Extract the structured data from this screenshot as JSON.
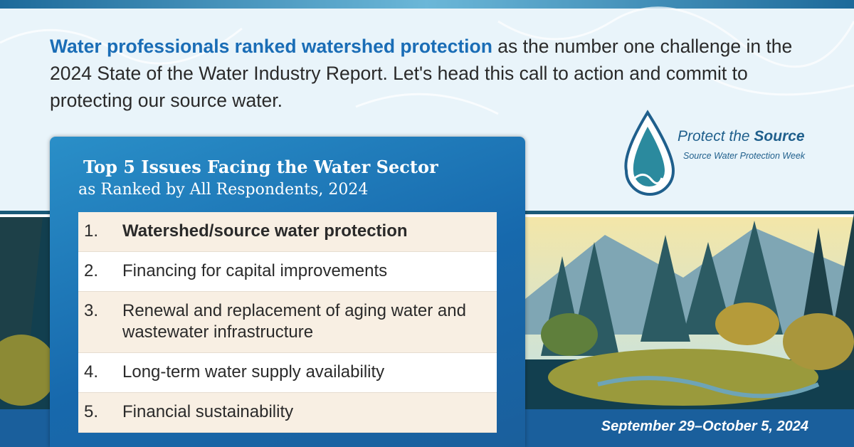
{
  "intro": {
    "highlight": "Water professionals ranked watershed protection",
    "text": "as the number one challenge in the 2024 State of the Water Industry Report. Let's head this call to action and commit to protecting our source water."
  },
  "logo": {
    "title_prefix": "Protect the",
    "title_emphasis": "Source",
    "subtitle": "Source Water Protection Week"
  },
  "card": {
    "title": "Top 5 Issues Facing the Water Sector",
    "subtitle": "as Ranked by All Respondents, 2024",
    "items": [
      {
        "number": "1.",
        "text": "Watershed/source water protection"
      },
      {
        "number": "2.",
        "text": "Financing for capital improvements"
      },
      {
        "number": "3.",
        "text": "Renewal and replacement of aging water and wastewater infrastructure"
      },
      {
        "number": "4.",
        "text": "Long-term water supply availability"
      },
      {
        "number": "5.",
        "text": "Financial sustainability"
      }
    ]
  },
  "date": "September 29–October 5, 2024"
}
